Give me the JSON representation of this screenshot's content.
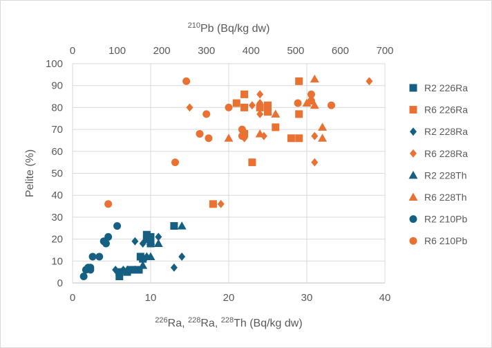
{
  "chart_data": {
    "type": "scatter",
    "x_bottom": {
      "label_parts": [
        {
          "text": "226",
          "sup": true
        },
        {
          "text": "Ra, ",
          "sup": false
        },
        {
          "text": "228",
          "sup": true
        },
        {
          "text": "Ra, ",
          "sup": false
        },
        {
          "text": "228",
          "sup": true
        },
        {
          "text": "Th (Bq/kg dw)",
          "sup": false
        }
      ],
      "range": [
        0,
        40
      ],
      "ticks": [
        "0",
        "10",
        "20",
        "30",
        "40"
      ]
    },
    "x_top": {
      "label_parts": [
        {
          "text": "210",
          "sup": true
        },
        {
          "text": "Pb (Bq/kg dw)",
          "sup": false
        }
      ],
      "range": [
        0,
        700
      ],
      "ticks": [
        "0",
        "100",
        "200",
        "300",
        "400",
        "500",
        "600",
        "700"
      ]
    },
    "y": {
      "label": "Pelite (%)",
      "range": [
        0,
        100
      ],
      "ticks": [
        "0",
        "10",
        "20",
        "30",
        "40",
        "50",
        "60",
        "70",
        "80",
        "90",
        "100"
      ]
    },
    "grid": true,
    "legend_position": "right",
    "colors": {
      "R2": "#156082",
      "R6": "#E97132"
    },
    "series": [
      {
        "name": "R2 226Ra",
        "marker": "square",
        "color": "#156082",
        "axis": "bottom",
        "points": [
          [
            6.0,
            3
          ],
          [
            6.0,
            5
          ],
          [
            7.0,
            5
          ],
          [
            7.5,
            6
          ],
          [
            8.0,
            6
          ],
          [
            8.5,
            6
          ],
          [
            8.7,
            12
          ],
          [
            9.0,
            11
          ],
          [
            9.5,
            20
          ],
          [
            9.5,
            22
          ],
          [
            10.0,
            18
          ],
          [
            10.0,
            21
          ],
          [
            13.0,
            26
          ]
        ]
      },
      {
        "name": "R6 226Ra",
        "marker": "square",
        "color": "#E97132",
        "axis": "bottom",
        "points": [
          [
            18.0,
            36
          ],
          [
            21.0,
            82
          ],
          [
            22.0,
            80
          ],
          [
            22.0,
            86
          ],
          [
            22.0,
            68
          ],
          [
            23.0,
            55
          ],
          [
            24.0,
            80
          ],
          [
            25.0,
            78
          ],
          [
            25.0,
            81
          ],
          [
            26.0,
            71
          ],
          [
            28.0,
            66
          ],
          [
            29.0,
            66
          ],
          [
            29.0,
            77
          ],
          [
            29.0,
            92
          ]
        ]
      },
      {
        "name": "R2 228Ra",
        "marker": "diamond",
        "color": "#156082",
        "axis": "bottom",
        "points": [
          [
            5.5,
            6
          ],
          [
            6.5,
            6
          ],
          [
            8.0,
            19
          ],
          [
            9.0,
            18
          ],
          [
            9.5,
            12
          ],
          [
            10.0,
            20
          ],
          [
            11.0,
            21
          ],
          [
            13.0,
            7
          ],
          [
            14.0,
            12
          ]
        ]
      },
      {
        "name": "R6 228Ra",
        "marker": "diamond",
        "color": "#E97132",
        "axis": "bottom",
        "points": [
          [
            19.0,
            36
          ],
          [
            15.0,
            80
          ],
          [
            22.0,
            66
          ],
          [
            22.0,
            69
          ],
          [
            23.0,
            81
          ],
          [
            24.0,
            82
          ],
          [
            24.0,
            77
          ],
          [
            24.0,
            86
          ],
          [
            24.5,
            67
          ],
          [
            31.0,
            55
          ],
          [
            31.0,
            67
          ],
          [
            38.0,
            92
          ]
        ]
      },
      {
        "name": "R2 228Th",
        "marker": "triangle",
        "color": "#156082",
        "axis": "bottom",
        "points": [
          [
            7.0,
            6
          ],
          [
            8.0,
            6
          ],
          [
            9.0,
            8
          ],
          [
            9.5,
            12
          ],
          [
            10.0,
            12
          ],
          [
            10.0,
            19
          ],
          [
            11.0,
            18
          ],
          [
            14.0,
            26
          ]
        ]
      },
      {
        "name": "R6 228Th",
        "marker": "triangle",
        "color": "#E97132",
        "axis": "bottom",
        "points": [
          [
            20.0,
            66
          ],
          [
            24.0,
            68
          ],
          [
            26.0,
            77
          ],
          [
            30.0,
            82
          ],
          [
            31.0,
            81
          ],
          [
            31.0,
            93
          ],
          [
            32.0,
            66
          ],
          [
            32.0,
            71
          ]
        ]
      },
      {
        "name": "R2 210Pb",
        "marker": "circle",
        "color": "#156082",
        "axis": "top",
        "points": [
          [
            25,
            3
          ],
          [
            30,
            6
          ],
          [
            35,
            7
          ],
          [
            40,
            6
          ],
          [
            40,
            7
          ],
          [
            45,
            12
          ],
          [
            60,
            12
          ],
          [
            70,
            19
          ],
          [
            75,
            18
          ],
          [
            80,
            21
          ],
          [
            100,
            26
          ]
        ]
      },
      {
        "name": "R6 210Pb",
        "marker": "circle",
        "color": "#E97132",
        "axis": "top",
        "points": [
          [
            80,
            36
          ],
          [
            230,
            55
          ],
          [
            255,
            92
          ],
          [
            285,
            68
          ],
          [
            300,
            77
          ],
          [
            305,
            66
          ],
          [
            350,
            80
          ],
          [
            380,
            70
          ],
          [
            380,
            67
          ],
          [
            505,
            82
          ],
          [
            535,
            86
          ],
          [
            535,
            83
          ],
          [
            580,
            81
          ]
        ]
      }
    ]
  }
}
